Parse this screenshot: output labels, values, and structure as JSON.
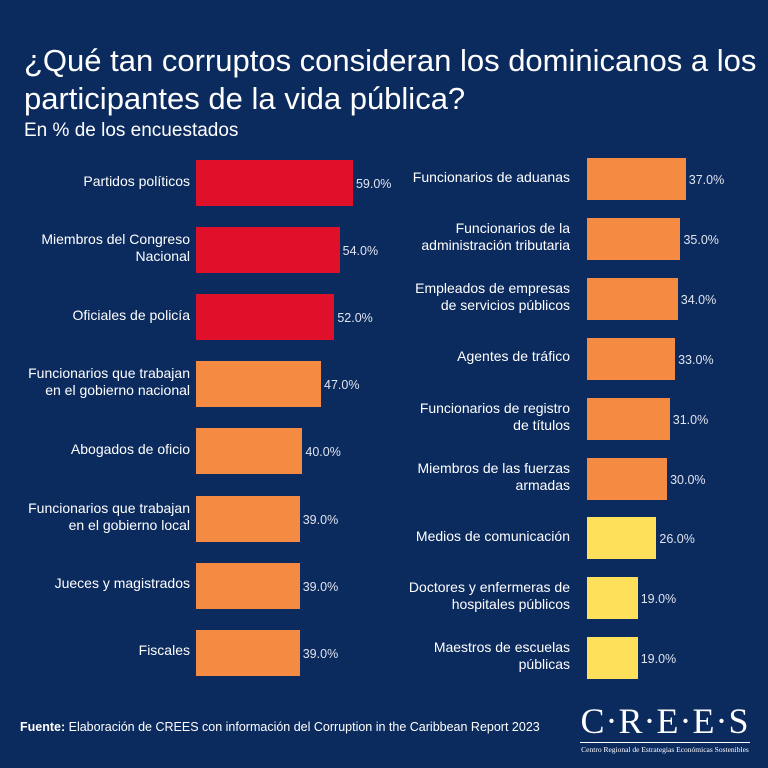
{
  "title": "¿Qué tan corruptos consideran los dominicanos a los participantes de la vida pública?",
  "subtitle": "En % de los encuestados",
  "colors": {
    "background": "#0b2a5e",
    "high": "#e0102a",
    "mid": "#f58a42",
    "low": "#ffe05a"
  },
  "chart_data": [
    {
      "type": "bar",
      "orientation": "horizontal",
      "unit": "%",
      "categories": [
        "Partidos políticos",
        "Miembros del Congreso\nNacional",
        "Oficiales de policía",
        "Funcionarios  que trabajan\nen el gobierno nacional",
        "Abogados de oficio",
        "Funcionarios que trabajan\nen el gobierno local",
        "Jueces y magistrados",
        "Fiscales"
      ],
      "values": [
        59.0,
        54.0,
        52.0,
        47.0,
        40.0,
        39.0,
        39.0,
        39.0
      ],
      "labels": [
        "59.0%",
        "54.0%",
        "52.0%",
        "47.0%",
        "40.0%",
        "39.0%",
        "39.0%",
        "39.0%"
      ],
      "color_groups": [
        "high",
        "high",
        "high",
        "mid",
        "mid",
        "mid",
        "mid",
        "mid"
      ]
    },
    {
      "type": "bar",
      "orientation": "horizontal",
      "unit": "%",
      "categories": [
        "Funcionarios de aduanas",
        "Funcionarios de la\nadministración tributaria",
        "Empleados de empresas\nde servicios públicos",
        "Agentes de tráfico",
        "Funcionarios de registro\nde títulos",
        "Miembros de las fuerzas\narmadas",
        "Medios de comunicación",
        "Doctores y enfermeras de\nhospitales públicos",
        "Maestros de escuelas\npúblicas"
      ],
      "values": [
        37.0,
        35.0,
        34.0,
        33.0,
        31.0,
        30.0,
        26.0,
        19.0,
        19.0
      ],
      "labels": [
        "37.0%",
        "35.0%",
        "34.0%",
        "33.0%",
        "31.0%",
        "30.0%",
        "26.0%",
        "19.0%",
        "19.0%"
      ],
      "color_groups": [
        "mid",
        "mid",
        "mid",
        "mid",
        "mid",
        "mid",
        "low",
        "low",
        "low"
      ]
    }
  ],
  "footer": {
    "source_label": "Fuente:",
    "source_text": " Elaboración de CREES con información del Corruption in the Caribbean Report 2023"
  },
  "logo": {
    "name": "C·R·E·E·S",
    "tagline": "Centro Regional de Estrategias Económicas Sostenibles"
  }
}
